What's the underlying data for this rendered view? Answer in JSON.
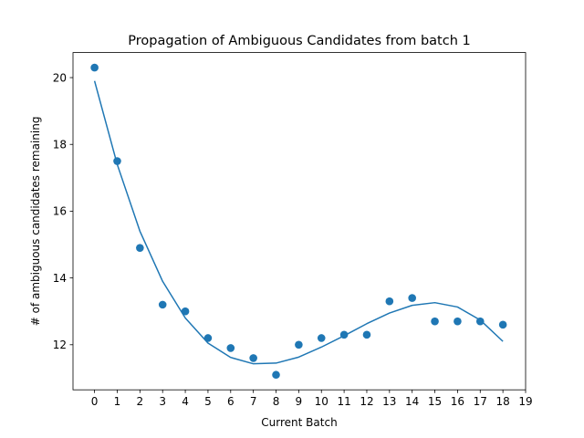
{
  "chart_data": {
    "type": "scatter",
    "title": "Propagation of Ambiguous Candidates from batch 1",
    "xlabel": "Current Batch",
    "ylabel": "# of ambiguous candidates remaining",
    "xlim": [
      -0.95,
      19.0
    ],
    "ylim": [
      10.65,
      20.75
    ],
    "xticks": [
      "0",
      "1",
      "2",
      "3",
      "4",
      "5",
      "6",
      "7",
      "8",
      "9",
      "10",
      "11",
      "12",
      "13",
      "14",
      "15",
      "16",
      "17",
      "18",
      "19"
    ],
    "yticks": [
      "12",
      "14",
      "16",
      "18",
      "20"
    ],
    "grid": false,
    "color": "#1f77b4",
    "series": [
      {
        "kind": "scatter",
        "x": [
          0,
          1,
          2,
          3,
          4,
          5,
          6,
          7,
          8,
          9,
          10,
          11,
          12,
          13,
          14,
          15,
          16,
          17,
          18
        ],
        "y": [
          20.3,
          17.5,
          14.9,
          13.2,
          13.0,
          12.2,
          11.9,
          11.6,
          11.1,
          12.0,
          12.2,
          12.3,
          12.3,
          13.3,
          13.4,
          12.7,
          12.7,
          12.7,
          12.6
        ]
      },
      {
        "kind": "line",
        "x": [
          0,
          1,
          2,
          3,
          4,
          5,
          6,
          7,
          8,
          9,
          10,
          11,
          12,
          13,
          14,
          15,
          16,
          17,
          18
        ],
        "y": [
          19.9,
          17.4,
          15.4,
          13.9,
          12.8,
          12.05,
          11.62,
          11.43,
          11.45,
          11.63,
          11.93,
          12.27,
          12.63,
          12.95,
          13.18,
          13.26,
          13.13,
          12.74,
          12.1
        ]
      }
    ]
  }
}
